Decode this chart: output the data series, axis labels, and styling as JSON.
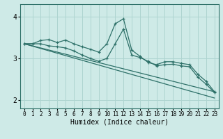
{
  "background_color": "#ceeae7",
  "line_color": "#2d7068",
  "grid_color": "#aed4d0",
  "xlabel": "Humidex (Indice chaleur)",
  "ylim": [
    1.8,
    4.3
  ],
  "xlim": [
    -0.5,
    23.5
  ],
  "yticks": [
    2,
    3,
    4
  ],
  "xticks": [
    0,
    1,
    2,
    3,
    4,
    5,
    6,
    7,
    8,
    9,
    10,
    11,
    12,
    13,
    14,
    15,
    16,
    17,
    18,
    19,
    20,
    21,
    22,
    23
  ],
  "series": [
    {
      "x": [
        0,
        1,
        2,
        3,
        4,
        5,
        6,
        7,
        8,
        9,
        10,
        11,
        12,
        13,
        14,
        15,
        16,
        17,
        18,
        19,
        20,
        21,
        22,
        23
      ],
      "y": [
        3.35,
        3.35,
        3.43,
        3.45,
        3.38,
        3.44,
        3.35,
        3.28,
        3.22,
        3.15,
        3.35,
        3.83,
        3.95,
        3.2,
        3.05,
        2.9,
        2.85,
        2.92,
        2.92,
        2.88,
        2.85,
        2.62,
        2.45,
        2.2
      ],
      "marker": true
    },
    {
      "x": [
        0,
        1,
        2,
        3,
        4,
        5,
        6,
        7,
        8,
        9,
        10,
        11,
        12,
        13,
        14,
        15,
        16,
        17,
        18,
        19,
        20,
        21,
        22,
        23
      ],
      "y": [
        3.35,
        3.35,
        3.35,
        3.3,
        3.28,
        3.25,
        3.18,
        3.08,
        3.0,
        2.93,
        3.0,
        3.35,
        3.7,
        3.08,
        3.02,
        2.93,
        2.82,
        2.85,
        2.86,
        2.82,
        2.8,
        2.55,
        2.38,
        2.18
      ],
      "marker": true
    },
    {
      "x": [
        0,
        23
      ],
      "y": [
        3.35,
        2.2
      ],
      "marker": false
    },
    {
      "x": [
        0,
        23
      ],
      "y": [
        3.35,
        2.05
      ],
      "marker": false
    }
  ]
}
